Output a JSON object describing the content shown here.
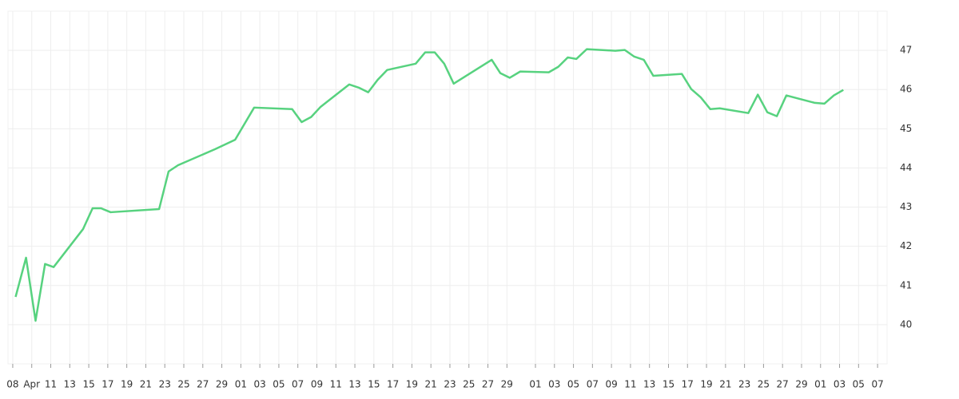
{
  "chart_data": {
    "type": "line",
    "x": [
      0.3,
      1.4,
      2.4,
      3.4,
      4.3,
      7.4,
      8.4,
      9.3,
      10.3,
      15.4,
      16.4,
      17.4,
      21.3,
      23.4,
      25.4,
      29.4,
      30.4,
      31.4,
      32.4,
      35.4,
      36.4,
      37.4,
      38.4,
      39.4,
      42.4,
      43.4,
      44.4,
      45.4,
      46.4,
      50.4,
      51.3,
      52.3,
      53.4,
      56.4,
      57.4,
      58.4,
      59.3,
      60.4,
      63.4,
      64.4,
      65.4,
      66.4,
      67.4,
      70.4,
      71.4,
      72.4,
      73.4,
      74.4,
      77.4,
      78.4,
      79.4,
      80.4,
      81.4,
      84.4,
      85.4,
      86.4,
      87.4
    ],
    "series": [
      {
        "color": "#57d27f",
        "values": [
          40.71,
          41.71,
          40.1,
          41.55,
          41.47,
          42.44,
          42.97,
          42.97,
          42.87,
          42.95,
          43.91,
          44.07,
          44.48,
          44.72,
          45.54,
          45.5,
          45.17,
          45.3,
          45.56,
          46.13,
          46.05,
          45.93,
          46.25,
          46.5,
          46.66,
          46.95,
          46.95,
          46.66,
          46.15,
          46.76,
          46.42,
          46.3,
          46.46,
          46.44,
          46.58,
          46.82,
          46.78,
          47.03,
          46.99,
          47.01,
          46.84,
          46.76,
          46.35,
          46.4,
          46.01,
          45.8,
          45.5,
          45.52,
          45.4,
          45.87,
          45.42,
          45.32,
          45.85,
          45.66,
          45.64,
          45.85,
          45.99
        ]
      }
    ],
    "xlim": [
      -0.5,
      92
    ],
    "xticks": [
      {
        "value": 0,
        "label": "08"
      },
      {
        "value": 2,
        "label": "Apr"
      },
      {
        "value": 4,
        "label": "11"
      },
      {
        "value": 6,
        "label": "13"
      },
      {
        "value": 8,
        "label": "15"
      },
      {
        "value": 10,
        "label": "17"
      },
      {
        "value": 12,
        "label": "19"
      },
      {
        "value": 14,
        "label": "21"
      },
      {
        "value": 16,
        "label": "23"
      },
      {
        "value": 18,
        "label": "25"
      },
      {
        "value": 20,
        "label": "27"
      },
      {
        "value": 22,
        "label": "29"
      },
      {
        "value": 24,
        "label": "01"
      },
      {
        "value": 26,
        "label": "03"
      },
      {
        "value": 28,
        "label": "05"
      },
      {
        "value": 30,
        "label": "07"
      },
      {
        "value": 32,
        "label": "09"
      },
      {
        "value": 34,
        "label": "11"
      },
      {
        "value": 36,
        "label": "13"
      },
      {
        "value": 38,
        "label": "15"
      },
      {
        "value": 40,
        "label": "17"
      },
      {
        "value": 42,
        "label": "19"
      },
      {
        "value": 44,
        "label": "21"
      },
      {
        "value": 46,
        "label": "23"
      },
      {
        "value": 48,
        "label": "25"
      },
      {
        "value": 50,
        "label": "27"
      },
      {
        "value": 52,
        "label": "29"
      },
      {
        "value": 55,
        "label": "01"
      },
      {
        "value": 57,
        "label": "03"
      },
      {
        "value": 59,
        "label": "05"
      },
      {
        "value": 61,
        "label": "07"
      },
      {
        "value": 63,
        "label": "09"
      },
      {
        "value": 65,
        "label": "11"
      },
      {
        "value": 67,
        "label": "13"
      },
      {
        "value": 69,
        "label": "15"
      },
      {
        "value": 71,
        "label": "17"
      },
      {
        "value": 73,
        "label": "19"
      },
      {
        "value": 75,
        "label": "21"
      },
      {
        "value": 77,
        "label": "23"
      },
      {
        "value": 79,
        "label": "25"
      },
      {
        "value": 81,
        "label": "27"
      },
      {
        "value": 83,
        "label": "29"
      },
      {
        "value": 85,
        "label": "01"
      },
      {
        "value": 87,
        "label": "03"
      },
      {
        "value": 89,
        "label": "05"
      },
      {
        "value": 91,
        "label": "07"
      }
    ],
    "ylim": [
      39,
      48
    ],
    "yticks": [
      40,
      41,
      42,
      43,
      44,
      45,
      46,
      47
    ],
    "grid": true
  }
}
